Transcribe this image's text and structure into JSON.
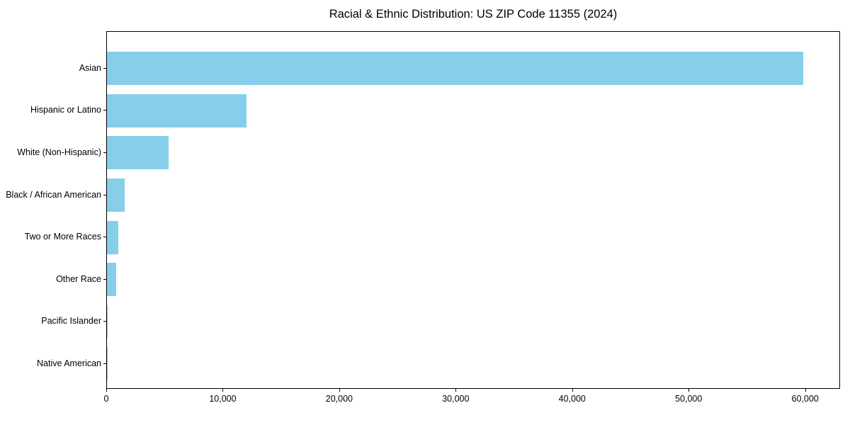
{
  "chart_data": {
    "type": "bar",
    "orientation": "horizontal",
    "title": "Racial & Ethnic Distribution: US ZIP Code 11355 (2024)",
    "categories": [
      "Asian",
      "Hispanic or Latino",
      "White (Non-Hispanic)",
      "Black / African American",
      "Two or More Races",
      "Other Race",
      "Pacific Islander",
      "Native American"
    ],
    "values": [
      59900,
      12000,
      5300,
      1550,
      950,
      800,
      60,
      30
    ],
    "xlabel": "",
    "ylabel": "",
    "xlim": [
      0,
      63000
    ],
    "x_ticks": [
      0,
      10000,
      20000,
      30000,
      40000,
      50000,
      60000
    ],
    "x_tick_labels": [
      "0",
      "10,000",
      "20,000",
      "30,000",
      "40,000",
      "50,000",
      "60,000"
    ],
    "bar_color": "#87CEEB",
    "grid": false,
    "legend": null
  }
}
